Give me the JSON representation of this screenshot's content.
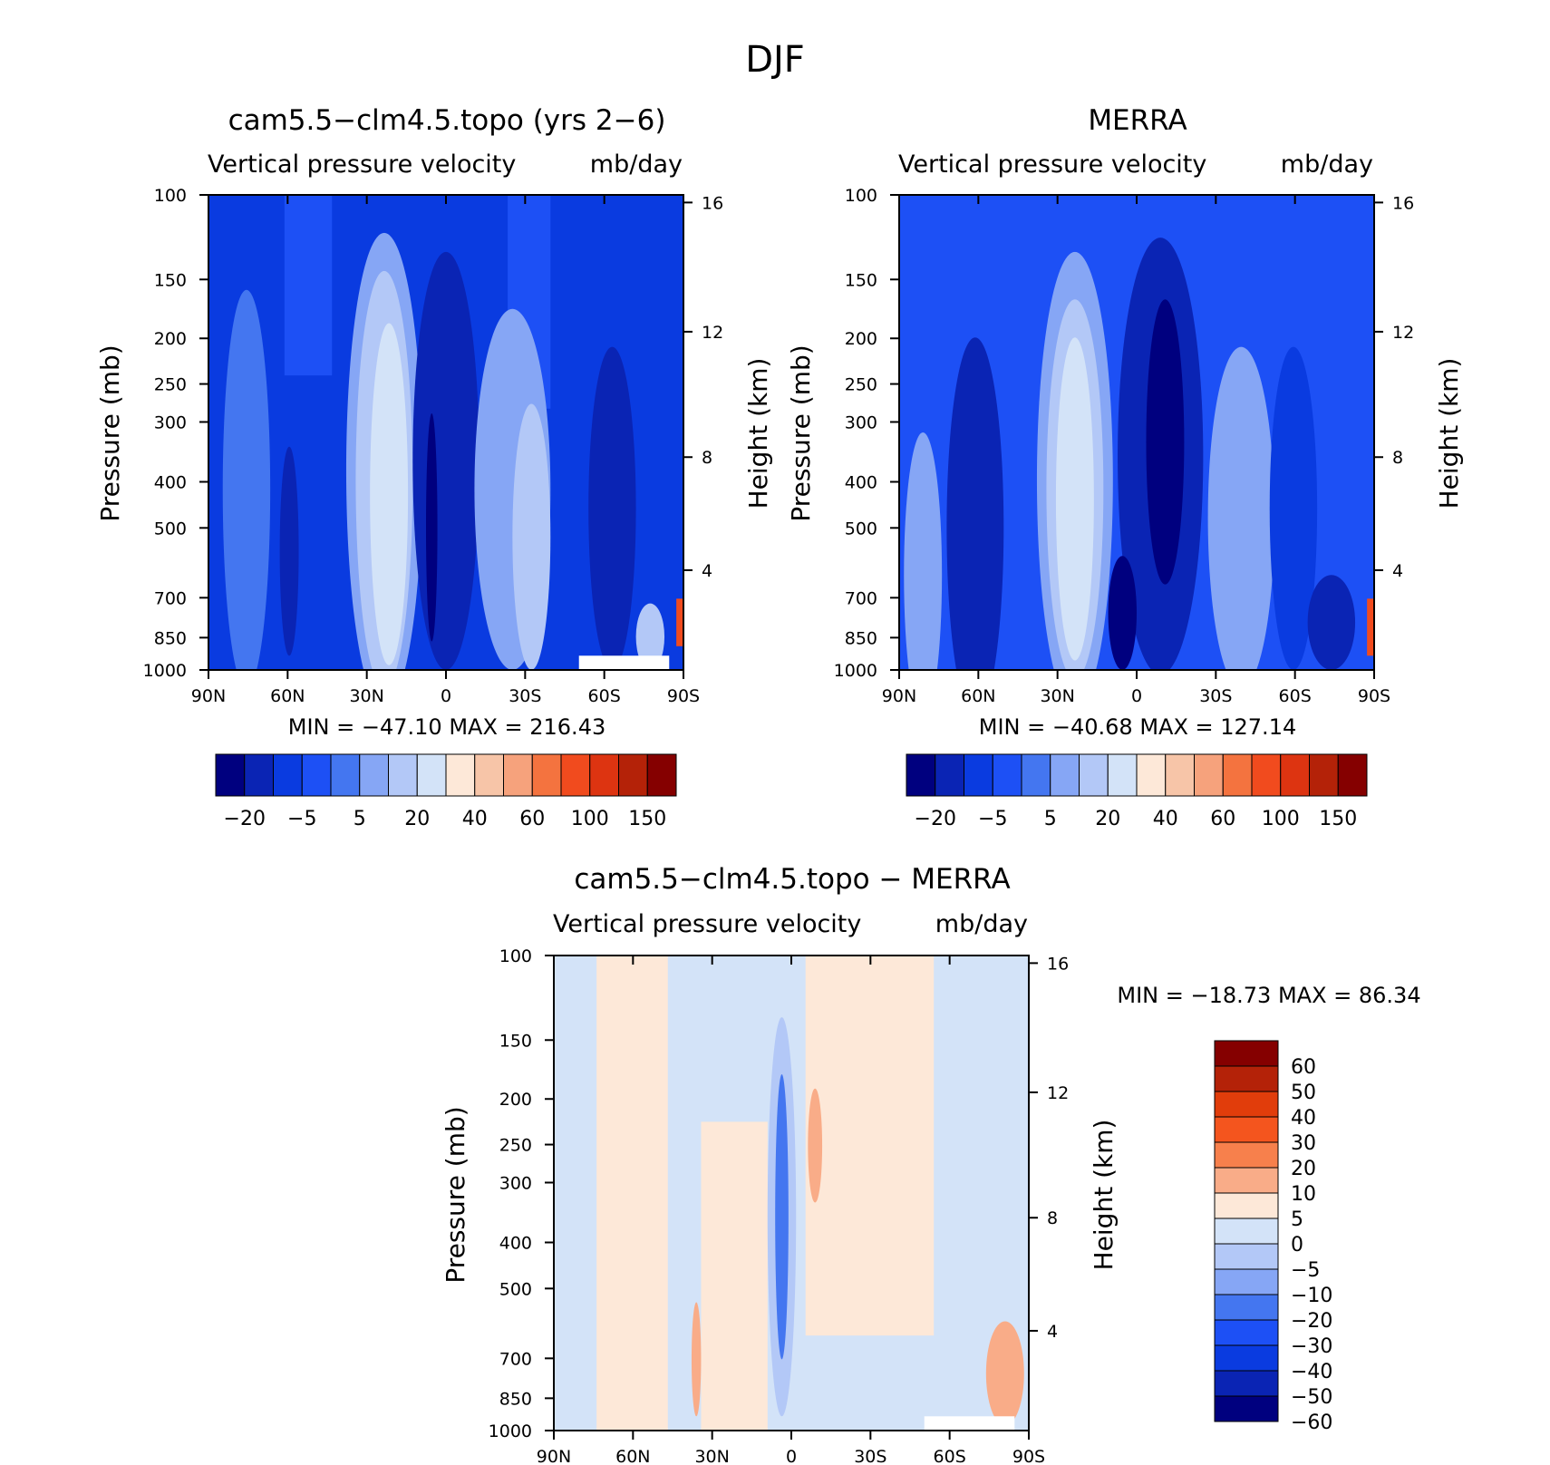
{
  "figure": {
    "title": "DJF"
  },
  "chart_data": [
    {
      "type": "heatmap",
      "title": "cam5.5−clm4.5.topo (yrs 2−6)",
      "subtitle_left": "Vertical pressure velocity",
      "subtitle_right": "mb/day",
      "ylabel": "Pressure (mb)",
      "ylabel_right": "Height (km)",
      "x_ticks": [
        "90N",
        "60N",
        "30N",
        "0",
        "30S",
        "60S",
        "90S"
      ],
      "y_ticks": [
        "100",
        "150",
        "200",
        "250",
        "300",
        "400",
        "500",
        "700",
        "850",
        "1000"
      ],
      "y_ticks_right": [
        "16",
        "12",
        "8",
        "4"
      ],
      "min_max_text": "MIN = −47.10   MAX = 216.43",
      "min": -47.1,
      "max": 216.43,
      "colorbar_labels": [
        "−20",
        "−5",
        "5",
        "20",
        "40",
        "60",
        "100",
        "150"
      ],
      "colorbar_orientation": "horizontal"
    },
    {
      "type": "heatmap",
      "title": "MERRA",
      "subtitle_left": "Vertical pressure velocity",
      "subtitle_right": "mb/day",
      "ylabel": "Pressure (mb)",
      "ylabel_right": "Height (km)",
      "x_ticks": [
        "90N",
        "60N",
        "30N",
        "0",
        "30S",
        "60S",
        "90S"
      ],
      "y_ticks": [
        "100",
        "150",
        "200",
        "250",
        "300",
        "400",
        "500",
        "700",
        "850",
        "1000"
      ],
      "y_ticks_right": [
        "16",
        "12",
        "8",
        "4"
      ],
      "min_max_text": "MIN = −40.68   MAX = 127.14",
      "min": -40.68,
      "max": 127.14,
      "colorbar_labels": [
        "−20",
        "−5",
        "5",
        "20",
        "40",
        "60",
        "100",
        "150"
      ],
      "colorbar_orientation": "horizontal"
    },
    {
      "type": "heatmap",
      "title": "cam5.5−clm4.5.topo − MERRA",
      "subtitle_left": "Vertical pressure velocity",
      "subtitle_right": "mb/day",
      "ylabel": "Pressure (mb)",
      "ylabel_right": "Height (km)",
      "x_ticks": [
        "90N",
        "60N",
        "30N",
        "0",
        "30S",
        "60S",
        "90S"
      ],
      "y_ticks": [
        "100",
        "150",
        "200",
        "250",
        "300",
        "400",
        "500",
        "700",
        "850",
        "1000"
      ],
      "y_ticks_right": [
        "16",
        "12",
        "8",
        "4"
      ],
      "min_max_text": "MIN = −18.73   MAX =  86.34",
      "min": -18.73,
      "max": 86.34,
      "colorbar_labels": [
        "60",
        "50",
        "40",
        "30",
        "20",
        "10",
        "5",
        "0",
        "−5",
        "−10",
        "−20",
        "−30",
        "−40",
        "−50",
        "−60"
      ],
      "colorbar_orientation": "vertical"
    }
  ],
  "colors": {
    "main_scale": [
      "#00007f",
      "#0a24b4",
      "#0a3be0",
      "#1d50f5",
      "#4476f0",
      "#86a6f5",
      "#b3c8f7",
      "#d3e3f8",
      "#fde8d8",
      "#f7c5a8",
      "#f6a27c",
      "#f4733f",
      "#f14b1e",
      "#dd3411",
      "#b42208",
      "#850000"
    ],
    "diff_scale": [
      "#850000",
      "#b42208",
      "#e13d0b",
      "#f4551e",
      "#f7804c",
      "#f9ac88",
      "#fde8d8",
      "#d3e3f8",
      "#b3c8f7",
      "#86a6f5",
      "#4476f0",
      "#1d50f5",
      "#0a3be0",
      "#0a24b4",
      "#00007f"
    ]
  }
}
